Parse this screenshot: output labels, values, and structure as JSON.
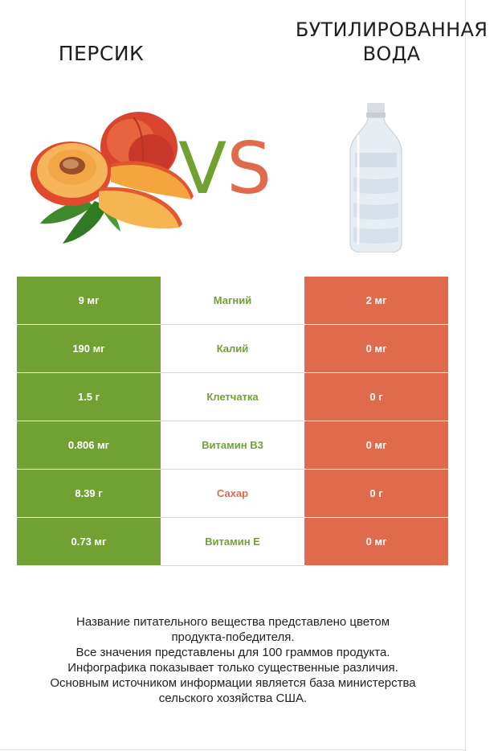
{
  "header": {
    "left_title": "ПЕРСИК",
    "right_title_line1": "БУТИЛИРОВАННАЯ",
    "right_title_line2": "ВОДА",
    "vs_v": "V",
    "vs_s": "S"
  },
  "colors": {
    "winner_left": "#71a132",
    "winner_right": "#e06a4c"
  },
  "icons": {
    "left_image": "peach-image",
    "right_image": "water-bottle-image"
  },
  "rows": [
    {
      "left": "9 мг",
      "nutrient": "Магний",
      "right": "2 мг",
      "winner": "left"
    },
    {
      "left": "190 мг",
      "nutrient": "Калий",
      "right": "0 мг",
      "winner": "left"
    },
    {
      "left": "1.5 г",
      "nutrient": "Клетчатка",
      "right": "0 г",
      "winner": "left"
    },
    {
      "left": "0.806 мг",
      "nutrient": "Витамин B3",
      "right": "0 мг",
      "winner": "left"
    },
    {
      "left": "8.39 г",
      "nutrient": "Сахар",
      "right": "0 г",
      "winner": "right"
    },
    {
      "left": "0.73 мг",
      "nutrient": "Витамин E",
      "right": "0 мг",
      "winner": "left"
    }
  ],
  "footer": {
    "line1": "Название питательного вещества представлено цветом",
    "line2": "продукта-победителя.",
    "line3": "Все значения представлены для 100 граммов продукта.",
    "line4": "Инфографика показывает только существенные различия.",
    "line5": "Основным источником информации является база министерства",
    "line6": "сельского хозяйства США."
  }
}
